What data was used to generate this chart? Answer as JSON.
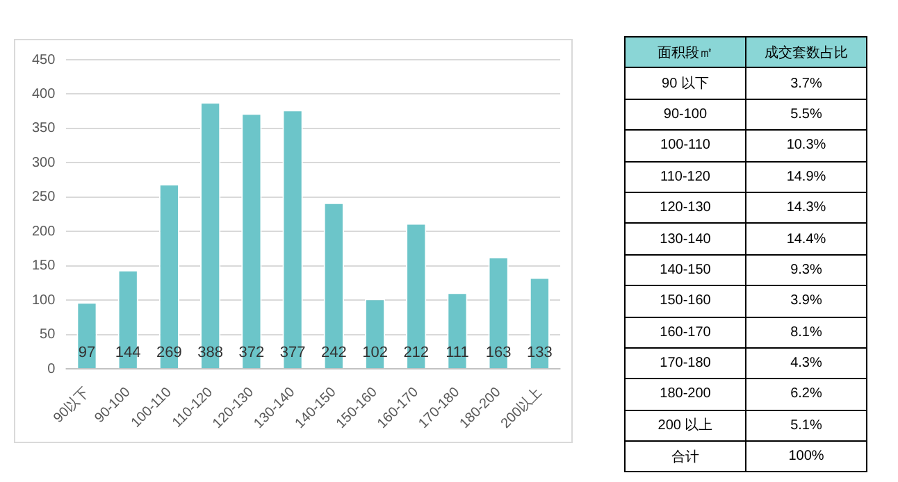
{
  "chart_data": [
    {
      "type": "bar",
      "categories": [
        "90以下",
        "90-100",
        "100-110",
        "110-120",
        "120-130",
        "130-140",
        "140-150",
        "150-160",
        "160-170",
        "170-180",
        "180-200",
        "200以上"
      ],
      "values": [
        97,
        144,
        269,
        388,
        372,
        377,
        242,
        102,
        212,
        111,
        163,
        133
      ],
      "color": "#6cc5c9",
      "ylim": [
        0,
        450
      ],
      "yticks": [
        0,
        50,
        100,
        150,
        200,
        250,
        300,
        350,
        400,
        450
      ],
      "grid": "y",
      "data_labels": true
    },
    {
      "type": "other",
      "xlabel": "面积段㎡",
      "ylabel": "成交套数占比",
      "categories": [
        "90 以下",
        "90-100",
        "100-110",
        "110-120",
        "120-130",
        "130-140",
        "140-150",
        "150-160",
        "160-170",
        "170-180",
        "180-200",
        "200 以上",
        "合计"
      ],
      "values": [
        3.7,
        5.5,
        10.3,
        14.9,
        14.3,
        14.4,
        9.3,
        3.9,
        8.1,
        4.3,
        6.2,
        5.1,
        100
      ],
      "value_labels": [
        "3.7%",
        "5.5%",
        "10.3%",
        "14.9%",
        "14.3%",
        "14.4%",
        "9.3%",
        "3.9%",
        "8.1%",
        "4.3%",
        "6.2%",
        "5.1%",
        "100%"
      ]
    }
  ]
}
